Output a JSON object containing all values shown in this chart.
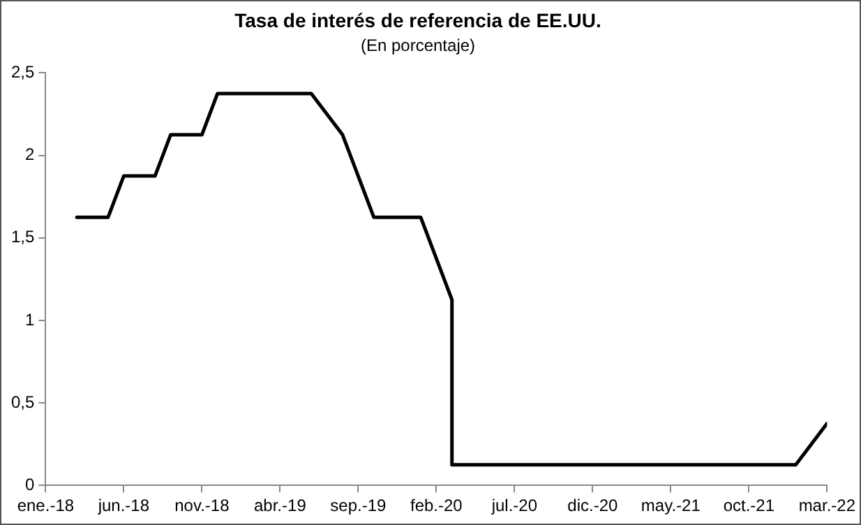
{
  "chart_data": {
    "type": "line",
    "title": "Tasa de interés de referencia de EE.UU.",
    "subtitle": "(En porcentaje)",
    "series": [
      {
        "color": "#000000",
        "x": [
          "2018-03",
          "2018-05",
          "2018-06",
          "2018-08",
          "2018-09",
          "2018-11",
          "2018-12",
          "2019-06",
          "2019-08",
          "2019-10",
          "2020-01",
          "2020-03",
          "2020-03",
          "2022-01",
          "2022-03"
        ],
        "values": [
          1.625,
          1.625,
          1.875,
          1.875,
          2.125,
          2.125,
          2.375,
          2.375,
          2.125,
          1.625,
          1.625,
          1.125,
          0.125,
          0.125,
          0.375
        ]
      }
    ],
    "xlim": [
      "2018-01",
      "2022-03"
    ],
    "xticks": [
      {
        "value": "2018-01",
        "label": "ene.-18"
      },
      {
        "value": "2018-06",
        "label": "jun.-18"
      },
      {
        "value": "2018-11",
        "label": "nov.-18"
      },
      {
        "value": "2019-04",
        "label": "abr.-19"
      },
      {
        "value": "2019-09",
        "label": "sep.-19"
      },
      {
        "value": "2020-02",
        "label": "feb.-20"
      },
      {
        "value": "2020-07",
        "label": "jul.-20"
      },
      {
        "value": "2020-12",
        "label": "dic.-20"
      },
      {
        "value": "2021-05",
        "label": "may.-21"
      },
      {
        "value": "2021-10",
        "label": "oct.-21"
      },
      {
        "value": "2022-03",
        "label": "mar.-22"
      }
    ],
    "ylim": [
      0,
      2.5
    ],
    "yticks": [
      0,
      {
        "value": 0.5,
        "label": "0,5"
      },
      1,
      {
        "value": 1.5,
        "label": "1,5"
      },
      2,
      {
        "value": 2.5,
        "label": "2,5"
      }
    ],
    "grid": false,
    "legend": false,
    "marker": "none",
    "line_style": "solid"
  }
}
